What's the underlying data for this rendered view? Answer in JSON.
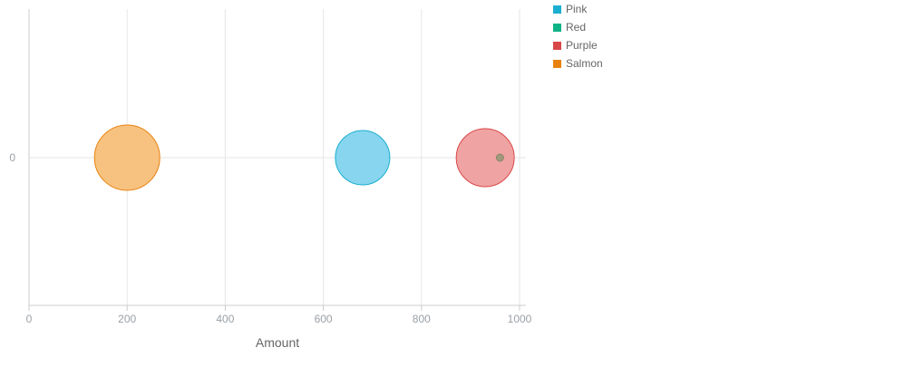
{
  "chart_data": {
    "type": "scatter",
    "title": "",
    "xlabel": "Amount",
    "ylabel": "",
    "xlim": [
      0,
      1000
    ],
    "ylim": [
      -1,
      1
    ],
    "x_ticks": [
      0,
      200,
      400,
      600,
      800,
      1000
    ],
    "y_ticks": [
      0
    ],
    "grid": true,
    "legend_position": "top-right",
    "series": [
      {
        "name": "Pink",
        "color": "#1aafd0",
        "fill": "#87d5ee",
        "points": [
          {
            "x": 680,
            "y": 0,
            "size": 30
          }
        ]
      },
      {
        "name": "Red",
        "color": "#0fb386",
        "fill": "#0fb386",
        "points": []
      },
      {
        "name": "Purple",
        "color": "#d94848",
        "fill": "#f0a3a3",
        "points": [
          {
            "x": 930,
            "y": 0,
            "size": 32
          }
        ]
      },
      {
        "name": "Salmon",
        "color": "#e8820f",
        "fill": "#f7c27f",
        "points": [
          {
            "x": 200,
            "y": 0,
            "size": 36
          }
        ]
      }
    ],
    "annotation_point": {
      "x": 960,
      "y": 0
    }
  }
}
